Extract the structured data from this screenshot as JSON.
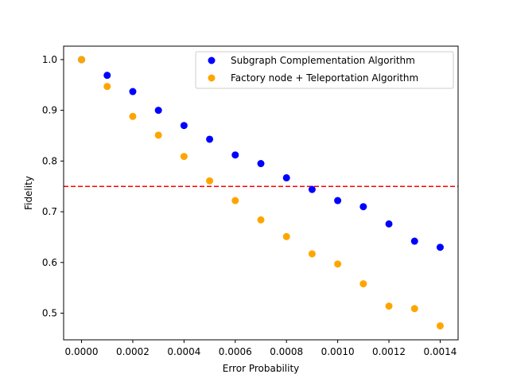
{
  "chart_data": {
    "type": "scatter",
    "title": "",
    "xlabel": "Error Probability",
    "ylabel": "Fidelity",
    "xlim": [
      -7e-05,
      0.00147
    ],
    "ylim": [
      0.4475,
      1.0265
    ],
    "xticks": [
      0.0,
      0.0002,
      0.0004,
      0.0006,
      0.0008,
      0.001,
      0.0012,
      0.0014
    ],
    "xtick_labels": [
      "0.0000",
      "0.0002",
      "0.0004",
      "0.0006",
      "0.0008",
      "0.0010",
      "0.0012",
      "0.0014"
    ],
    "yticks": [
      0.5,
      0.6,
      0.7,
      0.8,
      0.9,
      1.0
    ],
    "ytick_labels": [
      "0.5",
      "0.6",
      "0.7",
      "0.8",
      "0.9",
      "1.0"
    ],
    "x": [
      0.0,
      0.0001,
      0.0002,
      0.0003,
      0.0004,
      0.0005,
      0.0006,
      0.0007,
      0.0008,
      0.0009,
      0.001,
      0.0011,
      0.0012,
      0.0013,
      0.0014
    ],
    "series": [
      {
        "name": "Subgraph Complementation Algorithm",
        "color": "#0000ff",
        "values": [
          1.0,
          0.969,
          0.937,
          0.9,
          0.87,
          0.843,
          0.812,
          0.795,
          0.767,
          0.744,
          0.722,
          0.71,
          0.676,
          0.642,
          0.63
        ]
      },
      {
        "name": "Factory node + Teleportation Algorithm",
        "color": "#ffa500",
        "values": [
          1.0,
          0.947,
          0.888,
          0.851,
          0.809,
          0.761,
          0.722,
          0.684,
          0.651,
          0.617,
          0.597,
          0.558,
          0.514,
          0.509,
          0.475
        ]
      }
    ],
    "threshold": {
      "value": 0.75,
      "color": "#ff0000",
      "style": "dashed"
    },
    "legend_position": "top-right",
    "grid": false
  }
}
